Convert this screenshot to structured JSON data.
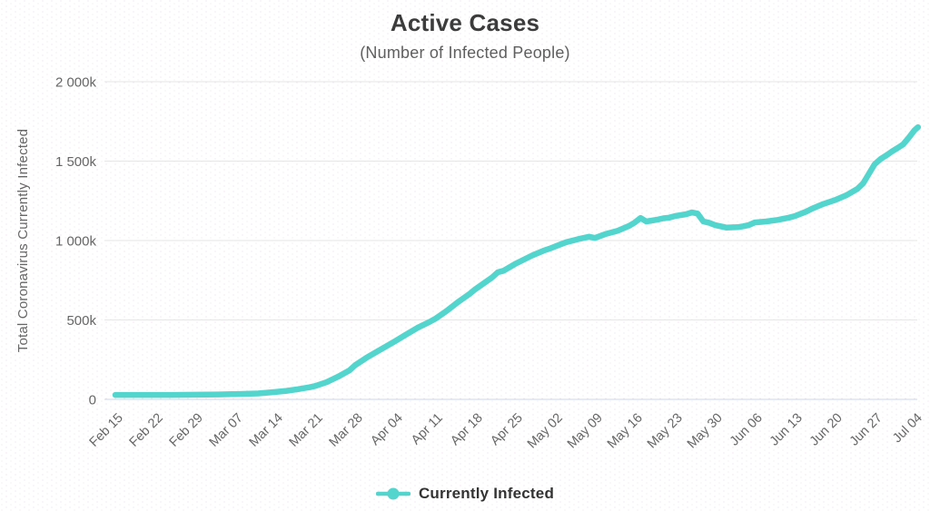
{
  "title": "Active Cases",
  "subtitle": "(Number of Infected People)",
  "colors": {
    "line": "#53d5ce",
    "grid": "#e6e6e6",
    "axis_line": "#ccd6eb",
    "title_text": "#3c3c3c",
    "tick_text": "#666666",
    "legend_text": "#333333"
  },
  "legend": {
    "label": "Currently Infected"
  },
  "chart_data": {
    "type": "line",
    "title": "Active Cases",
    "subtitle": "(Number of Infected People)",
    "xlabel": "",
    "ylabel": "Total Coronavirus Currently Infected",
    "y_unit": "thousands",
    "ylim": [
      0,
      2000
    ],
    "grid": "horizontal",
    "legend_position": "bottom",
    "y_ticks": [
      {
        "label": "0",
        "value": 0
      },
      {
        "label": "500k",
        "value": 500
      },
      {
        "label": "1 000k",
        "value": 1000
      },
      {
        "label": "1 500k",
        "value": 1500
      },
      {
        "label": "2 000k",
        "value": 2000
      }
    ],
    "x_ticks": [
      {
        "label": "Feb 15",
        "day": 0
      },
      {
        "label": "Feb 22",
        "day": 7
      },
      {
        "label": "Feb 29",
        "day": 14
      },
      {
        "label": "Mar 07",
        "day": 21
      },
      {
        "label": "Mar 14",
        "day": 28
      },
      {
        "label": "Mar 21",
        "day": 35
      },
      {
        "label": "Mar 28",
        "day": 42
      },
      {
        "label": "Apr 04",
        "day": 49
      },
      {
        "label": "Apr 11",
        "day": 56
      },
      {
        "label": "Apr 18",
        "day": 63
      },
      {
        "label": "Apr 25",
        "day": 70
      },
      {
        "label": "May 02",
        "day": 77
      },
      {
        "label": "May 09",
        "day": 84
      },
      {
        "label": "May 16",
        "day": 91
      },
      {
        "label": "May 23",
        "day": 98
      },
      {
        "label": "May 30",
        "day": 105
      },
      {
        "label": "Jun 06",
        "day": 112
      },
      {
        "label": "Jun 13",
        "day": 119
      },
      {
        "label": "Jun 20",
        "day": 126
      },
      {
        "label": "Jun 27",
        "day": 133
      },
      {
        "label": "Jul 04",
        "day": 140
      }
    ],
    "series": [
      {
        "name": "Currently Infected",
        "color": "#53d5ce",
        "points_units": "[day offset from Feb 15, active cases in thousands]",
        "points": [
          [
            0,
            28
          ],
          [
            4,
            28
          ],
          [
            7,
            28
          ],
          [
            10,
            28
          ],
          [
            14,
            29
          ],
          [
            18,
            31
          ],
          [
            21,
            33
          ],
          [
            25,
            37
          ],
          [
            28,
            46
          ],
          [
            30,
            54
          ],
          [
            32,
            64
          ],
          [
            34,
            76
          ],
          [
            35,
            84
          ],
          [
            37,
            108
          ],
          [
            39,
            142
          ],
          [
            41,
            182
          ],
          [
            42,
            215
          ],
          [
            44,
            262
          ],
          [
            46,
            304
          ],
          [
            48,
            345
          ],
          [
            49,
            366
          ],
          [
            51,
            410
          ],
          [
            53,
            452
          ],
          [
            55,
            487
          ],
          [
            56,
            506
          ],
          [
            58,
            556
          ],
          [
            60,
            612
          ],
          [
            62,
            662
          ],
          [
            63,
            692
          ],
          [
            65,
            742
          ],
          [
            66,
            768
          ],
          [
            67,
            800
          ],
          [
            68,
            810
          ],
          [
            70,
            852
          ],
          [
            72,
            888
          ],
          [
            73,
            906
          ],
          [
            75,
            936
          ],
          [
            76,
            948
          ],
          [
            78,
            976
          ],
          [
            79,
            990
          ],
          [
            81,
            1008
          ],
          [
            83,
            1024
          ],
          [
            84,
            1016
          ],
          [
            86,
            1042
          ],
          [
            88,
            1062
          ],
          [
            90,
            1092
          ],
          [
            91,
            1114
          ],
          [
            92,
            1142
          ],
          [
            93,
            1120
          ],
          [
            95,
            1132
          ],
          [
            96,
            1140
          ],
          [
            97,
            1144
          ],
          [
            98,
            1154
          ],
          [
            100,
            1166
          ],
          [
            101,
            1177
          ],
          [
            102,
            1170
          ],
          [
            103,
            1120
          ],
          [
            104,
            1112
          ],
          [
            105,
            1098
          ],
          [
            107,
            1082
          ],
          [
            109,
            1084
          ],
          [
            110,
            1090
          ],
          [
            111,
            1098
          ],
          [
            112,
            1114
          ],
          [
            114,
            1120
          ],
          [
            116,
            1130
          ],
          [
            118,
            1144
          ],
          [
            119,
            1154
          ],
          [
            121,
            1182
          ],
          [
            122,
            1200
          ],
          [
            124,
            1230
          ],
          [
            126,
            1254
          ],
          [
            128,
            1284
          ],
          [
            130,
            1325
          ],
          [
            131,
            1360
          ],
          [
            132,
            1420
          ],
          [
            133,
            1480
          ],
          [
            134,
            1512
          ],
          [
            135,
            1535
          ],
          [
            136,
            1560
          ],
          [
            137,
            1582
          ],
          [
            138,
            1605
          ],
          [
            139,
            1648
          ],
          [
            140,
            1695
          ],
          [
            140.6,
            1714
          ]
        ]
      }
    ]
  }
}
